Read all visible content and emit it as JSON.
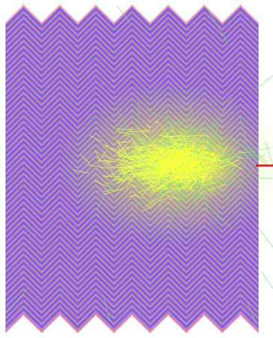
{
  "image": {
    "subject": "particle-shower-simulation",
    "background_color": "#ffffff",
    "absorber": {
      "layers_visible": true,
      "zigzag_periods": 7,
      "base_color": "#8a6fd6",
      "stripe_color_a": "#7a5fe0",
      "stripe_color_b": "#e88fb0",
      "edge_color": "#f4a0b8"
    },
    "shower": {
      "core_color": "#f6ff3a",
      "track_color": "#e8ff50",
      "secondary_track_color": "#7fe07a",
      "density": "high"
    },
    "incident_particle": {
      "color": "#e01818",
      "direction": "from-right"
    }
  }
}
